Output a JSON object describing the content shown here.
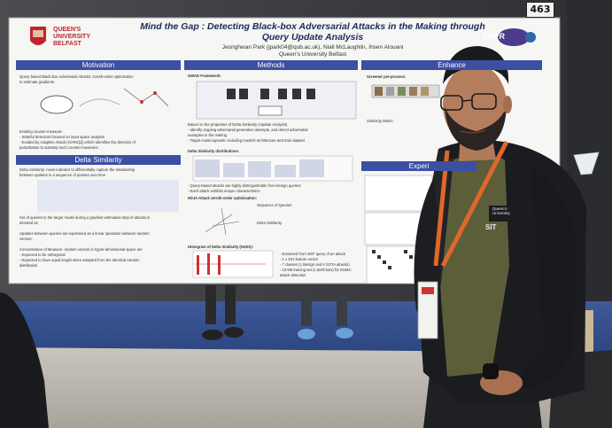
{
  "booth_number": "463",
  "poster": {
    "title": "Mind the Gap : Detecting Black-box Adversarial Attacks in the Making through Query Update Analysis",
    "authors": "Jeonghwan Park (jpark04@qub.ac.uk), Niall McLaughlin, Ihsen Alouani",
    "affiliation": "Queen's University Belfast",
    "logo_text": "QUEEN'S UNIVERSITY BELFAST",
    "conference_logo": "CVPR",
    "sections": {
      "motivation": "Motivation",
      "methods": "Methods",
      "enhance": "Enhance",
      "delta_similarity": "Delta Similarity",
      "experiments": "Experi"
    },
    "motivation_lines": [
      "Query based Black-box Adversarial Attacks: zeroth-order optimisation",
      "to estimate gradients.",
      "Existing counter-measure:",
      "- Stateful detectors focused on input space analysis",
      "- Evaded by Adaptive Attack (OARS[1]) which identifies the direction of",
      "  perturbation to sidestep such counter-measures"
    ],
    "delta_lines": [
      "Delta Similarity: novel indicator to differentially capture the relationship",
      "between updates in a sequence of queries over time",
      "Set of queries to the target model during a gradient estimation step of attacks is",
      "denoted as",
      "Updates between queries are expressed as a linear operation between random",
      "vectors:",
      "Concentration of Measure: random vectors in hyper-dimensional space are",
      "- Expected to be orthogonal",
      "- Expected to have equal length when sampled from the identical random",
      "  distribution"
    ],
    "methods_lines": [
      "GWAD Framework:",
      "Based on the properties of Delta Similarity (Update Analysis)",
      "- Identify ongoing adversarial generation attempts, and detect adversarial",
      "  examples in the making",
      "- Target model agnostic including model's architecture and train dataset",
      "Delta Similarity distributions:",
      "- Query-based attacks are highly distinguishable from benign queries",
      "- Each attack exhibits unique characteristics",
      "HSJA Attack zeroth-order optimisation:",
      "Sequence of Queries",
      "Delta Similarity",
      "Histogram of Delta Similarity (HoDS):",
      "- Extracted from 200* query of an attack",
      "- 1 x 301 feature vector",
      "- 7 classes (1 Benign and 6 SOTA attacks)",
      "- 10.5M training set (1.5M/Class) for DSMO",
      "  attack detection"
    ],
    "enhance_lines": [
      "Screener pre-process:",
      "Similarity Metric:"
    ]
  },
  "scene": {
    "visible_text_on_shirt": "SIT",
    "lanyard_text": "Queen's University"
  }
}
